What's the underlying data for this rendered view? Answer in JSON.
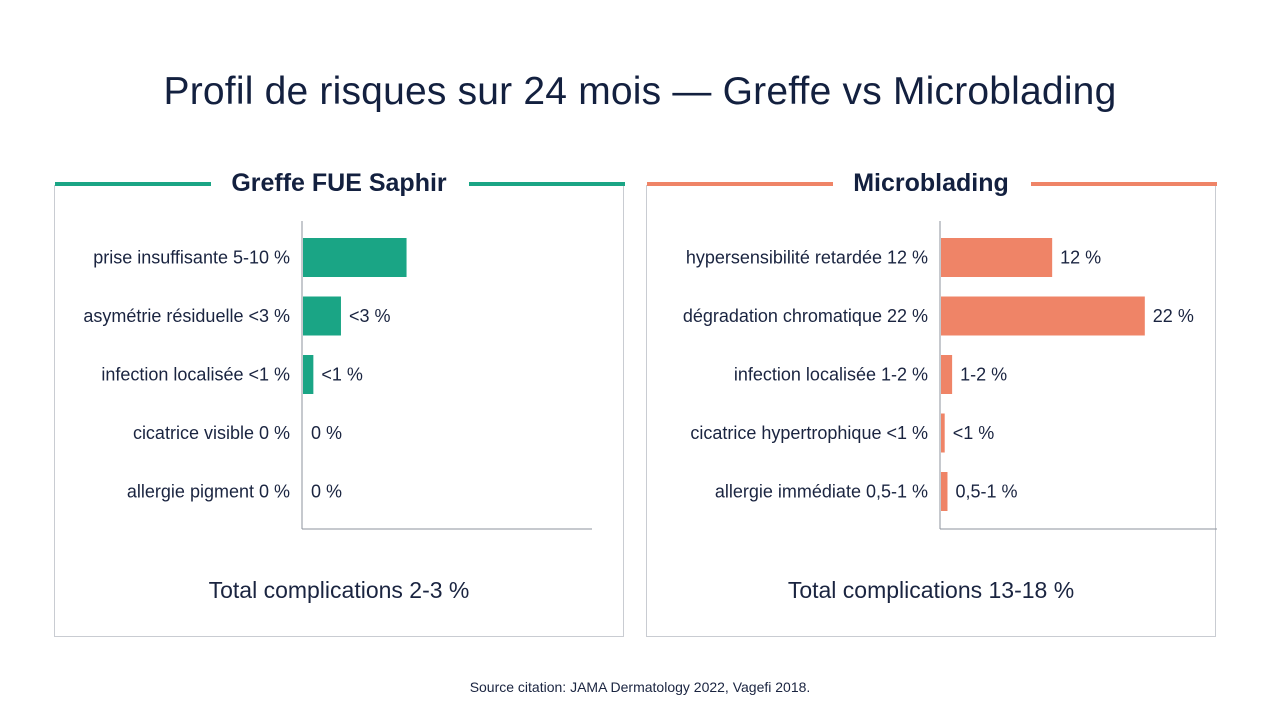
{
  "title": "Profil de risques sur 24 mois — Greffe vs Microblading",
  "chart_data": [
    {
      "type": "bar",
      "orientation": "horizontal",
      "title": "Greffe FUE Saphir",
      "color": "#1aa585",
      "categories": [
        "prise insuffisante 5-10 %",
        "asymétrie résiduelle <3 %",
        "infection localisée <1 %",
        "cicatrice visible 0 %",
        "allergie pigment 0 %"
      ],
      "values": [
        7.5,
        2.75,
        0.75,
        0,
        0
      ],
      "data_labels": [
        "",
        "<3 %",
        "<1 %",
        "0 %",
        "0 %"
      ],
      "xlim": [
        0,
        15.5
      ],
      "total": "Total complications 2-3 %"
    },
    {
      "type": "bar",
      "orientation": "horizontal",
      "title": "Microblading",
      "color": "#ef8467",
      "categories": [
        "hypersensibilité retardée 12 %",
        "dégradation chromatique 22 %",
        "infection localisée 1-2 %",
        "cicatrice hypertrophique <1 %",
        "allergie immédiate 0,5-1 %"
      ],
      "values": [
        12,
        22,
        1.2,
        0.4,
        0.7
      ],
      "data_labels": [
        "12 %",
        "22 %",
        "1-2 %",
        "<1 %",
        "0,5-1 %"
      ],
      "xlim": [
        0,
        23.1
      ],
      "total": "Total complications 13-18 %"
    }
  ],
  "source": "Source citation: JAMA Dermatology 2022, Vagefi 2018."
}
